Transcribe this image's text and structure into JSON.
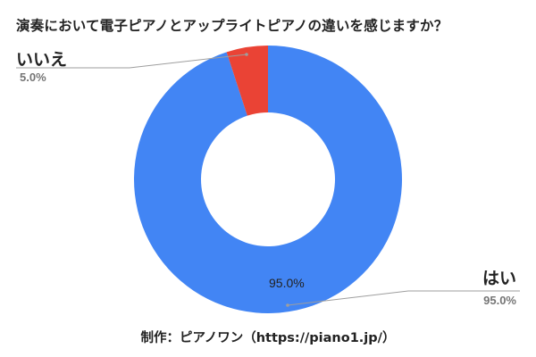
{
  "chart_data": {
    "type": "pie",
    "variant": "donut",
    "title": "演奏において電子ピアノとアップライトピアノの違いを感じますか？",
    "categories": [
      "はい",
      "いいえ"
    ],
    "values": [
      95.0,
      5.0
    ],
    "unit": "%",
    "colors": [
      "#4285f4",
      "#ea4335"
    ],
    "labels": [
      {
        "name": "はい",
        "percent": "95.0%",
        "in_slice": "95.0%"
      },
      {
        "name": "いいえ",
        "percent": "5.0%"
      }
    ],
    "legend": "none",
    "source": "制作：ピアノワン（https://piano1.jp/）"
  },
  "title": "演奏において電子ピアノとアップライトピアノの違いを感じますか？",
  "labels": {
    "yes_name": "はい",
    "yes_pct": "95.0%",
    "yes_inslice": "95.0%",
    "no_name": "いいえ",
    "no_pct": "5.0%"
  },
  "credit": "制作：ピアノワン（https://piano1.jp/）"
}
